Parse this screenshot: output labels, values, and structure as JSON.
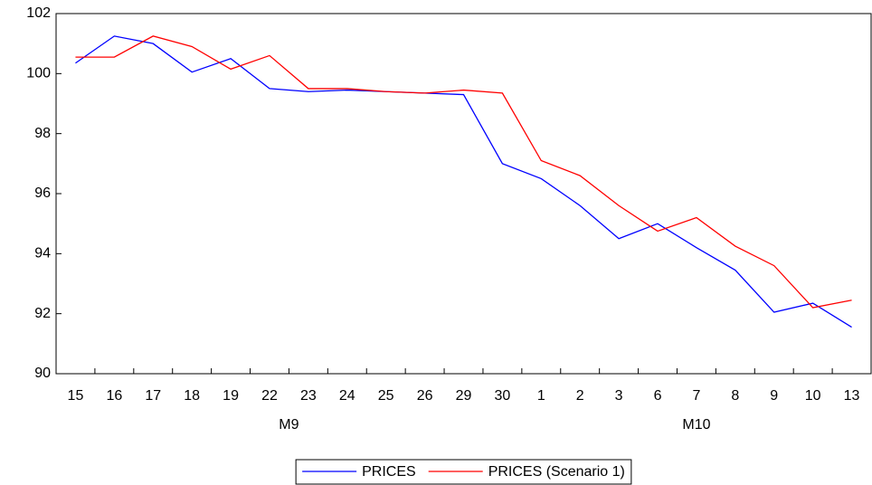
{
  "chart_data": {
    "type": "line",
    "categories": [
      "15",
      "16",
      "17",
      "18",
      "19",
      "22",
      "23",
      "24",
      "25",
      "26",
      "29",
      "30",
      "1",
      "2",
      "3",
      "6",
      "7",
      "8",
      "9",
      "10",
      "13"
    ],
    "x_groups": [
      "M9",
      "M10"
    ],
    "series": [
      {
        "name": "PRICES",
        "color": "#0000ff",
        "values": [
          100.35,
          101.25,
          101.0,
          100.05,
          100.5,
          99.5,
          99.4,
          99.45,
          99.4,
          99.35,
          99.3,
          97.0,
          96.5,
          95.6,
          94.5,
          95.0,
          94.2,
          93.45,
          92.05,
          92.35,
          91.55
        ]
      },
      {
        "name": "PRICES (Scenario 1)",
        "color": "#ff0000",
        "values": [
          100.55,
          100.55,
          101.25,
          100.9,
          100.15,
          100.6,
          99.5,
          99.5,
          99.4,
          99.35,
          99.45,
          99.35,
          97.1,
          96.6,
          95.6,
          94.75,
          95.2,
          94.25,
          93.6,
          92.2,
          92.45
        ]
      }
    ],
    "ylim": [
      90,
      102
    ],
    "yticks": [
      90,
      92,
      94,
      96,
      98,
      100,
      102
    ],
    "legend": "bottom"
  }
}
